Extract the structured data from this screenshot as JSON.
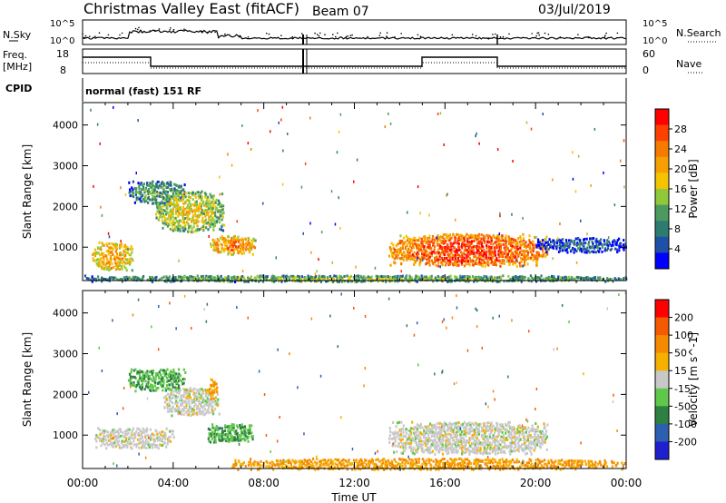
{
  "header": {
    "title": "Christmas Valley East (fitACF)",
    "beam": "Beam 07",
    "date": "03/Jul/2019"
  },
  "strips": {
    "nsky_label": "N.Sky",
    "nsearch_label": "N.Search",
    "power_ticks": [
      "10^5",
      "10^0"
    ],
    "freq_label": "Freq.",
    "freq_unit": "[MHz]",
    "freq_ticks": [
      "18",
      "8"
    ],
    "nave_label": "Nave",
    "nave_ticks": [
      "60",
      "0"
    ],
    "cpid_label": "CPID",
    "cpid_text": "normal (fast) 151 RF"
  },
  "colors": {
    "power": [
      "#0000ff",
      "#1f50a8",
      "#2d7c70",
      "#4c9a5f",
      "#8fc93a",
      "#f5c400",
      "#f5a000",
      "#f57a00",
      "#ff4000",
      "#ff0000"
    ],
    "velocity": [
      "#1f1fd0",
      "#2d5fb0",
      "#2d8040",
      "#5fc84a",
      "#c8c8c8",
      "#f5b000",
      "#f58a00",
      "#f55a00",
      "#ff0000"
    ]
  },
  "chart_data": [
    {
      "type": "heatmap",
      "panel": "power",
      "ylabel": "Slant Range [km]",
      "xlabel": "Time UT",
      "x_ticks": [
        "00:00",
        "04:00",
        "08:00",
        "12:00",
        "16:00",
        "20:00",
        "00:00"
      ],
      "xlim_hours": [
        0,
        24
      ],
      "y_ticks": [
        1000,
        2000,
        3000,
        4000
      ],
      "ylim_km": [
        180,
        4550
      ],
      "colorbar_label": "Power [dB]",
      "colorbar_ticks": [
        "28",
        "24",
        "20",
        "16",
        "12",
        "8",
        "4"
      ],
      "colorbar_range": [
        0,
        32
      ],
      "echo_regions": [
        {
          "t0": 0.4,
          "t1": 2.2,
          "r0": 450,
          "r1": 1150,
          "level": 22
        },
        {
          "t0": 2.0,
          "t1": 4.5,
          "r0": 2100,
          "r1": 2650,
          "level": 12
        },
        {
          "t0": 3.2,
          "t1": 6.2,
          "r0": 1400,
          "r1": 2400,
          "level": 18
        },
        {
          "t0": 5.6,
          "t1": 7.6,
          "r0": 850,
          "r1": 1300,
          "level": 24
        },
        {
          "t0": 0.0,
          "t1": 24.0,
          "r0": 180,
          "r1": 330,
          "level": 14
        },
        {
          "t0": 13.5,
          "t1": 20.5,
          "r0": 560,
          "r1": 1350,
          "level": 28
        },
        {
          "t0": 20.0,
          "t1": 24.0,
          "r0": 900,
          "r1": 1250,
          "level": 8
        }
      ]
    },
    {
      "type": "heatmap",
      "panel": "velocity",
      "ylabel": "Slant Range [km]",
      "xlabel": "Time UT",
      "x_ticks": [
        "00:00",
        "04:00",
        "08:00",
        "12:00",
        "16:00",
        "20:00",
        "00:00"
      ],
      "xlim_hours": [
        0,
        24
      ],
      "y_ticks": [
        1000,
        2000,
        3000,
        4000
      ],
      "ylim_km": [
        180,
        4550
      ],
      "colorbar_label": "Velocity [m s^-1]",
      "colorbar_ticks": [
        "200",
        "100",
        "50",
        "15",
        "-15",
        "-50",
        "-100",
        "-200"
      ],
      "echo_regions": [
        {
          "t0": 2.0,
          "t1": 4.5,
          "r0": 2100,
          "r1": 2650,
          "level": 50
        },
        {
          "t0": 3.5,
          "t1": 6.0,
          "r0": 1500,
          "r1": 2200,
          "level": 0
        },
        {
          "t0": 5.5,
          "t1": 5.9,
          "r0": 1900,
          "r1": 2400,
          "level": -50
        },
        {
          "t0": 0.5,
          "t1": 4.0,
          "r0": 700,
          "r1": 1200,
          "level": 0
        },
        {
          "t0": 5.5,
          "t1": 7.5,
          "r0": 850,
          "r1": 1300,
          "level": 50
        },
        {
          "t0": 13.5,
          "t1": 20.5,
          "r0": 560,
          "r1": 1350,
          "level": 0
        },
        {
          "t0": 6.5,
          "t1": 24.0,
          "r0": 180,
          "r1": 450,
          "level": -50
        }
      ]
    }
  ]
}
